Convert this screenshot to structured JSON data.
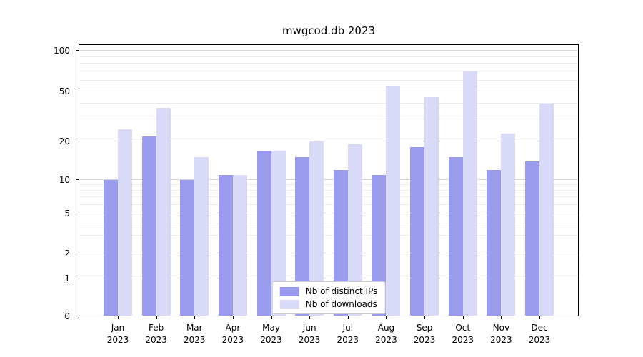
{
  "chart_data": {
    "type": "bar",
    "title": "mwgcod.db 2023",
    "year": "2023",
    "categories": [
      "Jan",
      "Feb",
      "Mar",
      "Apr",
      "May",
      "Jun",
      "Jul",
      "Aug",
      "Sep",
      "Oct",
      "Nov",
      "Dec"
    ],
    "series": [
      {
        "name": "Nb of distinct IPs",
        "color": "#9b9bee",
        "values": [
          10,
          22,
          10,
          11,
          17,
          15,
          12,
          11,
          18,
          15,
          12,
          14
        ]
      },
      {
        "name": "Nb of downloads",
        "color": "#d9d9f8",
        "values": [
          25,
          37,
          15,
          11,
          17,
          20,
          19,
          55,
          45,
          70,
          23,
          40
        ]
      }
    ],
    "yscale": "symlog",
    "ylim": [
      0,
      100
    ],
    "yticks": [
      0,
      1,
      2,
      5,
      10,
      20,
      50,
      100
    ],
    "minor_yticks": [
      3,
      4,
      6,
      7,
      8,
      9,
      30,
      40,
      60,
      70,
      80,
      90
    ],
    "grid": true,
    "legend_position": "lower center"
  }
}
